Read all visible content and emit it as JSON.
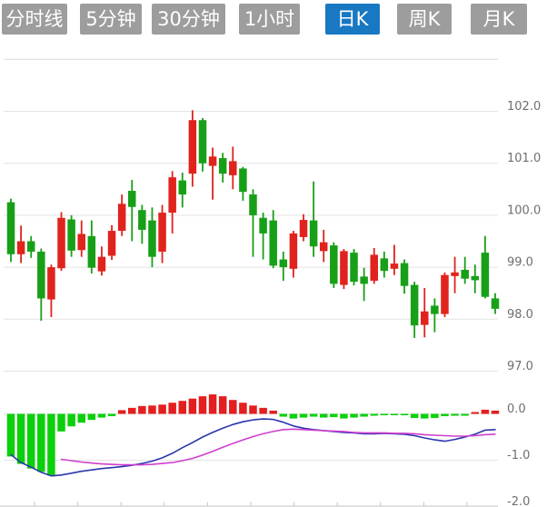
{
  "tabbar": {
    "tabs": [
      {
        "id": "tab-timeline",
        "label": "分时线",
        "active": false
      },
      {
        "id": "tab-5min",
        "label": "5分钟",
        "active": false
      },
      {
        "id": "tab-30min",
        "label": "30分钟",
        "active": false
      },
      {
        "id": "tab-1hour",
        "label": "1小时",
        "active": false
      },
      {
        "id": "tab-daily-k",
        "label": "日K",
        "active": true
      },
      {
        "id": "tab-weekly-k",
        "label": "周K",
        "active": false
      },
      {
        "id": "tab-monthly-k",
        "label": "月K",
        "active": false
      }
    ]
  },
  "colors": {
    "tab_bg": "#9d9d9d",
    "tab_active_bg": "#1878c2",
    "tab_text": "#ffffff",
    "up": "#e0231d",
    "down": "#17a017",
    "macd_up": "#e31f1f",
    "macd_down": "#0bd00b",
    "dif": "#2b36ab",
    "dea": "#cf3ecf",
    "grid": "#e4e4e4",
    "axis": "#cfcfcf",
    "label": "#6f6f6f"
  },
  "chart_data": {
    "type": "candlestick",
    "note": "Daily K-line with MACD sub-panel; red = up, green = down",
    "x_count": 49,
    "panels": [
      {
        "name": "price",
        "ylim": [
          96.85,
          103.1
        ],
        "gridlines": [
          103,
          102,
          101,
          100,
          99,
          98,
          97
        ],
        "axis_labels": [
          {
            "text": "102.0",
            "value": 102
          },
          {
            "text": "101.0",
            "value": 101
          },
          {
            "text": "100.0",
            "value": 100
          },
          {
            "text": "99.0",
            "value": 99
          },
          {
            "text": "98.0",
            "value": 98
          },
          {
            "text": "97.0",
            "value": 97
          }
        ],
        "candles_ohlc": [
          [
            100.25,
            100.32,
            99.1,
            99.25
          ],
          [
            99.25,
            99.8,
            99.08,
            99.5
          ],
          [
            99.5,
            99.6,
            99.18,
            99.3
          ],
          [
            99.3,
            99.36,
            97.97,
            98.4
          ],
          [
            98.38,
            99.05,
            98.04,
            99.0
          ],
          [
            98.98,
            100.06,
            98.93,
            99.95
          ],
          [
            99.92,
            100.0,
            99.2,
            99.32
          ],
          [
            99.33,
            99.9,
            99.2,
            99.64
          ],
          [
            99.6,
            99.9,
            98.88,
            98.99
          ],
          [
            98.92,
            99.4,
            98.84,
            99.2
          ],
          [
            99.22,
            99.81,
            99.14,
            99.7
          ],
          [
            99.7,
            100.4,
            99.6,
            100.22
          ],
          [
            100.47,
            100.68,
            99.5,
            100.16
          ],
          [
            100.1,
            100.2,
            99.45,
            99.72
          ],
          [
            99.9,
            100.15,
            99.0,
            99.2
          ],
          [
            99.3,
            100.2,
            99.08,
            100.05
          ],
          [
            100.05,
            100.85,
            99.65,
            100.73
          ],
          [
            100.67,
            100.82,
            100.15,
            100.4
          ],
          [
            100.8,
            102.02,
            100.55,
            101.83
          ],
          [
            101.83,
            101.87,
            100.84,
            101.0
          ],
          [
            100.95,
            101.3,
            100.3,
            101.13
          ],
          [
            101.1,
            101.2,
            100.63,
            100.8
          ],
          [
            100.77,
            101.32,
            100.5,
            101.04
          ],
          [
            100.9,
            100.93,
            100.28,
            100.45
          ],
          [
            100.4,
            100.5,
            99.2,
            100.0
          ],
          [
            99.95,
            100.05,
            99.15,
            99.65
          ],
          [
            99.9,
            100.1,
            98.98,
            99.03
          ],
          [
            99.15,
            99.3,
            98.74,
            99.0
          ],
          [
            98.97,
            99.7,
            98.8,
            99.65
          ],
          [
            99.58,
            100.02,
            99.5,
            99.91
          ],
          [
            99.9,
            100.65,
            99.2,
            99.4
          ],
          [
            99.31,
            99.72,
            99.1,
            99.48
          ],
          [
            99.42,
            99.48,
            98.6,
            98.68
          ],
          [
            98.66,
            99.35,
            98.58,
            99.31
          ],
          [
            99.28,
            99.35,
            98.65,
            98.72
          ],
          [
            98.82,
            98.99,
            98.35,
            98.68
          ],
          [
            98.74,
            99.37,
            98.68,
            99.24
          ],
          [
            99.17,
            99.3,
            98.8,
            98.93
          ],
          [
            98.97,
            99.43,
            98.85,
            99.07
          ],
          [
            99.08,
            99.15,
            98.49,
            98.64
          ],
          [
            98.66,
            98.72,
            97.64,
            97.88
          ],
          [
            97.89,
            98.6,
            97.65,
            98.15
          ],
          [
            98.26,
            98.4,
            97.75,
            98.1
          ],
          [
            98.1,
            98.9,
            98.04,
            98.85
          ],
          [
            98.83,
            99.2,
            98.5,
            98.9
          ],
          [
            98.95,
            99.2,
            98.68,
            98.78
          ],
          [
            98.83,
            99.05,
            98.5,
            98.75
          ],
          [
            99.28,
            99.6,
            98.4,
            98.43
          ],
          [
            98.4,
            98.5,
            98.1,
            98.2
          ]
        ]
      },
      {
        "name": "macd",
        "ylim": [
          -2.05,
          0.1
        ],
        "gridlines": [
          0,
          -1,
          -2
        ],
        "axis_labels": [
          {
            "text": "0.0",
            "value": 0
          },
          {
            "text": "-1.0",
            "value": -1
          },
          {
            "text": "-2.0",
            "value": -2
          }
        ],
        "histogram": [
          -0.92,
          -1.08,
          -1.18,
          -1.25,
          -1.33,
          -0.38,
          -0.27,
          -0.19,
          -0.13,
          -0.08,
          -0.05,
          0.08,
          0.13,
          0.17,
          0.18,
          0.2,
          0.24,
          0.28,
          0.33,
          0.38,
          0.42,
          0.38,
          0.3,
          0.24,
          0.18,
          0.13,
          0.07,
          -0.06,
          -0.1,
          -0.08,
          -0.06,
          -0.08,
          -0.07,
          -0.1,
          -0.08,
          -0.06,
          -0.04,
          -0.03,
          -0.02,
          -0.03,
          -0.09,
          -0.1,
          -0.09,
          -0.05,
          -0.04,
          -0.04,
          0.04,
          0.09,
          0.07
        ],
        "dif": [
          -0.88,
          -1.05,
          -1.15,
          -1.26,
          -1.34,
          -1.32,
          -1.28,
          -1.24,
          -1.21,
          -1.18,
          -1.16,
          -1.14,
          -1.11,
          -1.07,
          -1.02,
          -0.95,
          -0.85,
          -0.73,
          -0.62,
          -0.5,
          -0.4,
          -0.31,
          -0.23,
          -0.17,
          -0.13,
          -0.11,
          -0.12,
          -0.18,
          -0.26,
          -0.31,
          -0.34,
          -0.36,
          -0.38,
          -0.4,
          -0.41,
          -0.43,
          -0.43,
          -0.42,
          -0.43,
          -0.44,
          -0.47,
          -0.52,
          -0.56,
          -0.59,
          -0.55,
          -0.5,
          -0.44,
          -0.35,
          -0.34
        ],
        "dea": [
          null,
          null,
          null,
          null,
          null,
          -0.98,
          -1.01,
          -1.04,
          -1.06,
          -1.08,
          -1.09,
          -1.1,
          -1.1,
          -1.1,
          -1.09,
          -1.07,
          -1.05,
          -1.01,
          -0.96,
          -0.89,
          -0.81,
          -0.72,
          -0.64,
          -0.56,
          -0.49,
          -0.43,
          -0.38,
          -0.34,
          -0.33,
          -0.34,
          -0.35,
          -0.36,
          -0.37,
          -0.38,
          -0.4,
          -0.41,
          -0.41,
          -0.41,
          -0.42,
          -0.42,
          -0.43,
          -0.45,
          -0.46,
          -0.47,
          -0.48,
          -0.48,
          -0.47,
          -0.45,
          -0.44
        ]
      }
    ]
  }
}
